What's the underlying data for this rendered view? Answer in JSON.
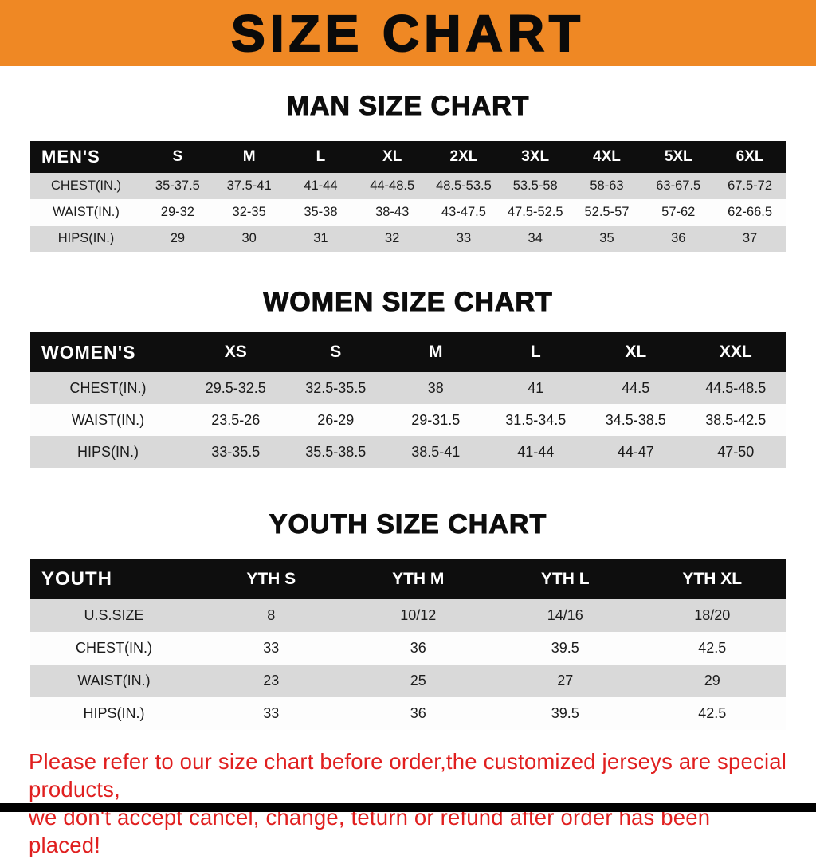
{
  "colors": {
    "banner-bg": "#ef8824",
    "footer-red": "#e01f1f",
    "header-row-bg": "#0e0e0e",
    "stripe-gray": "#d9d9d9"
  },
  "banner": {
    "title": "SIZE CHART"
  },
  "sections": [
    {
      "title": "MAN SIZE CHART",
      "table": {
        "header": [
          "MEN'S",
          "S",
          "M",
          "L",
          "XL",
          "2XL",
          "3XL",
          "4XL",
          "5XL",
          "6XL"
        ],
        "rows": [
          [
            "CHEST(IN.)",
            "35-37.5",
            "37.5-41",
            "41-44",
            "44-48.5",
            "48.5-53.5",
            "53.5-58",
            "58-63",
            "63-67.5",
            "67.5-72"
          ],
          [
            "WAIST(IN.)",
            "29-32",
            "32-35",
            "35-38",
            "38-43",
            "43-47.5",
            "47.5-52.5",
            "52.5-57",
            "57-62",
            "62-66.5"
          ],
          [
            "HIPS(IN.)",
            "29",
            "30",
            "31",
            "32",
            "33",
            "34",
            "35",
            "36",
            "37"
          ]
        ]
      }
    },
    {
      "title": "WOMEN SIZE CHART",
      "table": {
        "header": [
          "WOMEN'S",
          "XS",
          "S",
          "M",
          "L",
          "XL",
          "XXL"
        ],
        "rows": [
          [
            "CHEST(IN.)",
            "29.5-32.5",
            "32.5-35.5",
            "38",
            "41",
            "44.5",
            "44.5-48.5"
          ],
          [
            "WAIST(IN.)",
            "23.5-26",
            "26-29",
            "29-31.5",
            "31.5-34.5",
            "34.5-38.5",
            "38.5-42.5"
          ],
          [
            "HIPS(IN.)",
            "33-35.5",
            "35.5-38.5",
            "38.5-41",
            "41-44",
            "44-47",
            "47-50"
          ]
        ]
      }
    },
    {
      "title": "YOUTH SIZE CHART",
      "table": {
        "header": [
          "YOUTH",
          "YTH S",
          "YTH M",
          "YTH L",
          "YTH XL"
        ],
        "rows": [
          [
            "U.S.SIZE",
            "8",
            "10/12",
            "14/16",
            "18/20"
          ],
          [
            "CHEST(IN.)",
            "33",
            "36",
            "39.5",
            "42.5"
          ],
          [
            "WAIST(IN.)",
            "23",
            "25",
            "27",
            "29"
          ],
          [
            "HIPS(IN.)",
            "33",
            "36",
            "39.5",
            "42.5"
          ]
        ]
      }
    }
  ],
  "footer": {
    "line1": "Please refer to our size chart before order,the customized jerseys are special products,",
    "line2": "we don't accept cancel, change, teturn or refund after order has been placed!"
  }
}
